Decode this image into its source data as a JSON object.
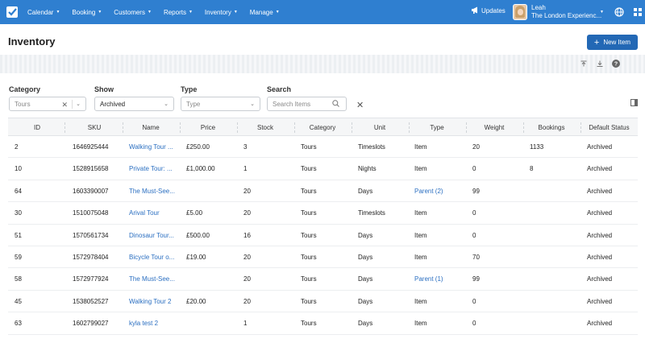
{
  "nav": {
    "items": [
      "Calendar",
      "Booking",
      "Customers",
      "Reports",
      "Inventory",
      "Manage"
    ],
    "updates": "Updates",
    "user_name": "Leah",
    "user_company": "The London Experienc..."
  },
  "header": {
    "title": "Inventory",
    "new_item": "New Item"
  },
  "filters": {
    "category_label": "Category",
    "category_value": "Tours",
    "show_label": "Show",
    "show_value": "Archived",
    "type_label": "Type",
    "type_placeholder": "Type",
    "search_label": "Search",
    "search_placeholder": "Search Items"
  },
  "table": {
    "columns": [
      "ID",
      "SKU",
      "Name",
      "Price",
      "Stock",
      "Category",
      "Unit",
      "Type",
      "Weight",
      "Bookings",
      "Default Status"
    ],
    "rows": [
      {
        "id": "2",
        "sku": "1646925444",
        "name": "Walking Tour ...",
        "price": "£250.00",
        "stock": "3",
        "category": "Tours",
        "unit": "Timeslots",
        "type": "Item",
        "type_link": false,
        "weight": "20",
        "bookings": "1133",
        "status": "Archived"
      },
      {
        "id": "10",
        "sku": "1528915658",
        "name": "Private Tour: ...",
        "price": "£1,000.00",
        "stock": "1",
        "category": "Tours",
        "unit": "Nights",
        "type": "Item",
        "type_link": false,
        "weight": "0",
        "bookings": "8",
        "status": "Archived"
      },
      {
        "id": "64",
        "sku": "1603390007",
        "name": "The Must-See...",
        "price": "",
        "stock": "20",
        "category": "Tours",
        "unit": "Days",
        "type": "Parent (2)",
        "type_link": true,
        "weight": "99",
        "bookings": "",
        "status": "Archived"
      },
      {
        "id": "30",
        "sku": "1510075048",
        "name": "Arival Tour",
        "price": "£5.00",
        "stock": "20",
        "category": "Tours",
        "unit": "Timeslots",
        "type": "Item",
        "type_link": false,
        "weight": "0",
        "bookings": "",
        "status": "Archived"
      },
      {
        "id": "51",
        "sku": "1570561734",
        "name": "Dinosaur Tour...",
        "price": "£500.00",
        "stock": "16",
        "category": "Tours",
        "unit": "Days",
        "type": "Item",
        "type_link": false,
        "weight": "0",
        "bookings": "",
        "status": "Archived"
      },
      {
        "id": "59",
        "sku": "1572978404",
        "name": "Bicycle Tour o...",
        "price": "£19.00",
        "stock": "20",
        "category": "Tours",
        "unit": "Days",
        "type": "Item",
        "type_link": false,
        "weight": "70",
        "bookings": "",
        "status": "Archived"
      },
      {
        "id": "58",
        "sku": "1572977924",
        "name": "The Must-See...",
        "price": "",
        "stock": "20",
        "category": "Tours",
        "unit": "Days",
        "type": "Parent (1)",
        "type_link": true,
        "weight": "99",
        "bookings": "",
        "status": "Archived"
      },
      {
        "id": "45",
        "sku": "1538052527",
        "name": "Walking Tour 2",
        "price": "£20.00",
        "stock": "20",
        "category": "Tours",
        "unit": "Days",
        "type": "Item",
        "type_link": false,
        "weight": "0",
        "bookings": "",
        "status": "Archived"
      },
      {
        "id": "63",
        "sku": "1602799027",
        "name": "kyla test 2",
        "price": "",
        "stock": "1",
        "category": "Tours",
        "unit": "Days",
        "type": "Item",
        "type_link": false,
        "weight": "0",
        "bookings": "",
        "status": "Archived"
      }
    ]
  }
}
